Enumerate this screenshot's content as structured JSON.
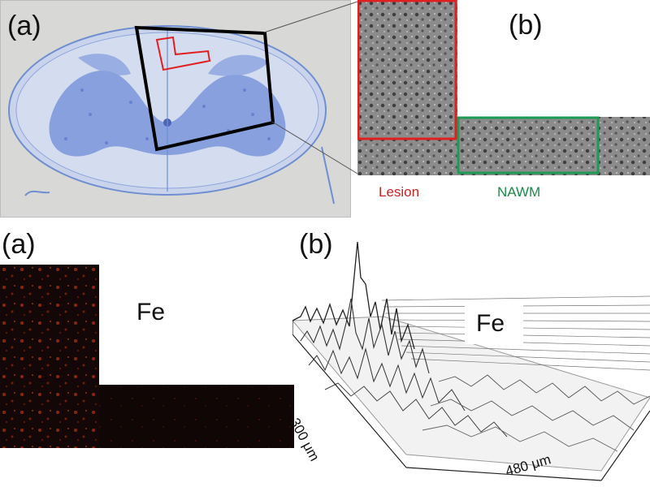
{
  "top_panel": {
    "label_a": "(a)",
    "label_b": "(b)",
    "region_labels": [
      {
        "text": "Lesion",
        "color": "#cc2222"
      },
      {
        "text": "NAWM",
        "color": "#1a8a4a"
      }
    ]
  },
  "bottom_panel": {
    "label_a": "(a)",
    "label_b": "(b)",
    "element_map_label": "Fe",
    "element_plot_label": "Fe",
    "axis_y_label": "300 μm",
    "axis_x_label": "480 μm"
  },
  "colors": {
    "lesion_box": "#e02020",
    "nawm_box": "#1f9a55",
    "stain_blue": "#5a7fd6",
    "map_dark": "#130808",
    "map_hot": "#d04010"
  }
}
